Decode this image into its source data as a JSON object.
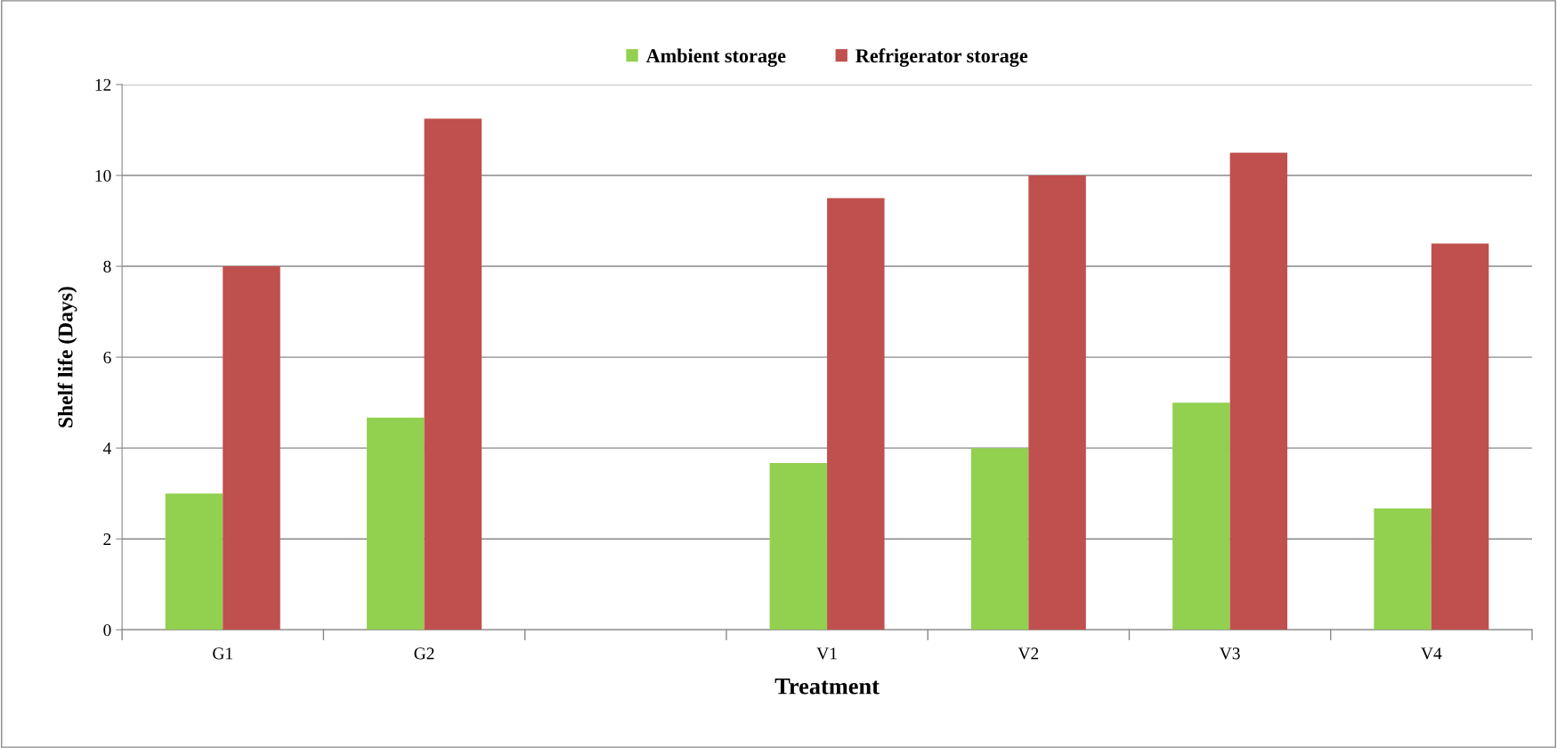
{
  "chart_data": {
    "type": "bar",
    "xlabel": "Treatment",
    "ylabel": "Shelf life (Days)",
    "categories": [
      "G1",
      "G2",
      null,
      "V1",
      "V2",
      "V3",
      "V4"
    ],
    "series": [
      {
        "name": "Ambient storage",
        "color": "#92d050",
        "values": [
          3,
          4.67,
          null,
          3.67,
          4,
          5,
          2.67
        ]
      },
      {
        "name": "Refrigerator storage",
        "color": "#c0504d",
        "values": [
          8,
          11.25,
          null,
          9.5,
          10,
          10.5,
          8.5
        ]
      }
    ],
    "ylim": [
      0,
      12
    ],
    "yticks": [
      0,
      2,
      4,
      6,
      8,
      10,
      12
    ],
    "grid": "y",
    "legend": "top"
  }
}
